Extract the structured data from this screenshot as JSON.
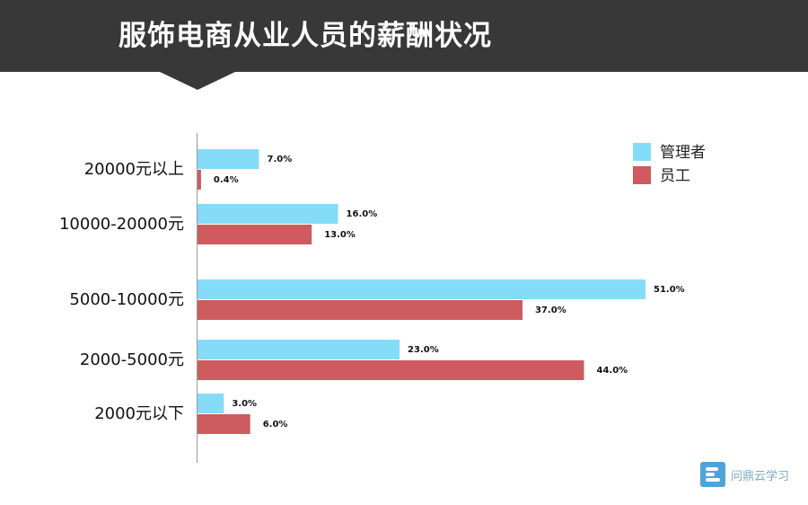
{
  "title": "服饰电商从业人员的薪酬状况",
  "watermark": {
    "text": "问鼎云学习",
    "icon": "brand-logo-icon"
  },
  "colors": {
    "manager": "#84dcf8",
    "employee": "#cd5b5f",
    "banner": "#383838"
  },
  "chart_data": {
    "type": "bar",
    "orientation": "horizontal",
    "title": "服饰电商从业人员的薪酬状况",
    "categories": [
      "20000元以上",
      "10000-20000元",
      "5000-10000元",
      "2000-5000元",
      "2000元以下"
    ],
    "series": [
      {
        "name": "管理者",
        "values": [
          7.0,
          16.0,
          51.0,
          23.0,
          3.0
        ],
        "labels": [
          "7.0%",
          "16.0%",
          "51.0%",
          "23.0%",
          "3.0%"
        ]
      },
      {
        "name": "员工",
        "values": [
          0.4,
          13.0,
          37.0,
          44.0,
          6.0
        ],
        "labels": [
          "0.4%",
          "13.0%",
          "37.0%",
          "44.0%",
          "6.0%"
        ]
      }
    ],
    "xlim": [
      0,
      51
    ],
    "unit": "%",
    "legend_position": "top-right",
    "grid": false
  }
}
